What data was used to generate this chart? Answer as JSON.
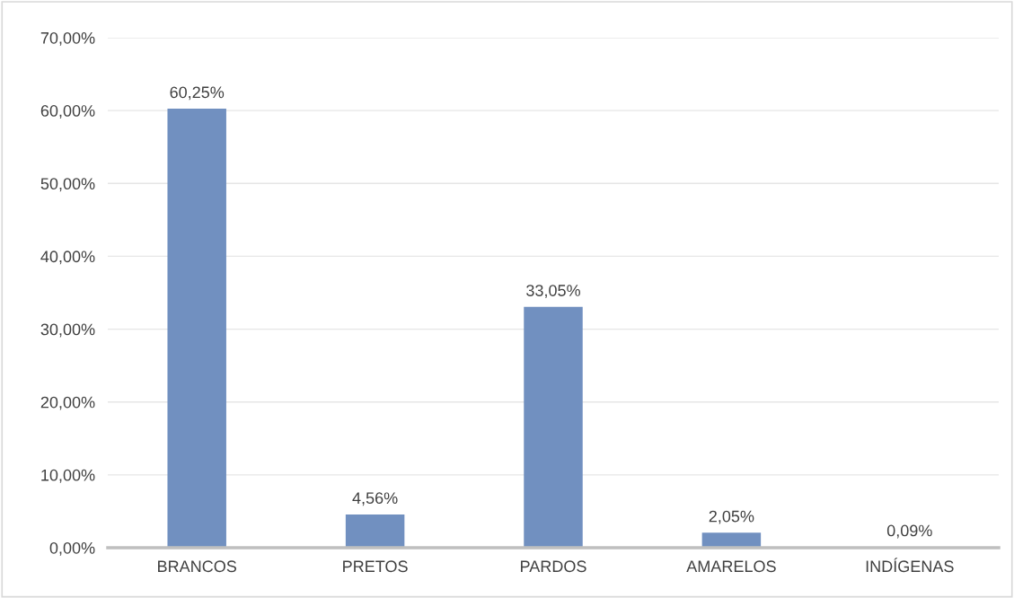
{
  "chart_data": {
    "type": "bar",
    "categories": [
      "BRANCOS",
      "PRETOS",
      "PARDOS",
      "AMARELOS",
      "INDÍGENAS"
    ],
    "values": [
      60.25,
      4.56,
      33.05,
      2.05,
      0.09
    ],
    "value_labels": [
      "60,25%",
      "4,56%",
      "33,05%",
      "2,05%",
      "0,09%"
    ],
    "color": "#7190c0",
    "ylim": [
      0,
      70
    ],
    "yticks": [
      {
        "value": 0,
        "label": "0,00%"
      },
      {
        "value": 10,
        "label": "10,00%"
      },
      {
        "value": 20,
        "label": "20,00%"
      },
      {
        "value": 30,
        "label": "30,00%"
      },
      {
        "value": 40,
        "label": "40,00%"
      },
      {
        "value": 50,
        "label": "50,00%"
      },
      {
        "value": 60,
        "label": "60,00%"
      },
      {
        "value": 70,
        "label": "70,00%"
      }
    ],
    "grid": "y"
  }
}
